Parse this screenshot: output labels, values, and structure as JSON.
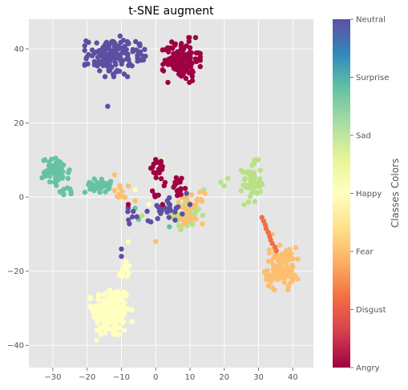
{
  "chart_data": {
    "type": "scatter",
    "title": "t-SNE augment",
    "xlabel": "",
    "ylabel": "",
    "xlim": [
      -37,
      46
    ],
    "ylim": [
      -46,
      48
    ],
    "x_ticks": [
      -30,
      -20,
      -10,
      0,
      10,
      20,
      30,
      40
    ],
    "y_ticks": [
      -40,
      -20,
      0,
      20,
      40
    ],
    "x_tick_labels": [
      "−30",
      "−20",
      "−10",
      "0",
      "10",
      "20",
      "30",
      "40"
    ],
    "y_tick_labels": [
      "−40",
      "−20",
      "0",
      "20",
      "40"
    ],
    "grid": true,
    "background": "#e5e5e5",
    "colormap": "Spectral",
    "colorbar": {
      "label": "Classes Colors",
      "ticks": [
        "Angry",
        "Disgust",
        "Fear",
        "Happy",
        "Sad",
        "Surprise",
        "Neutral"
      ],
      "colors": [
        "#9e0142",
        "#f46d43",
        "#fdbf6f",
        "#ffffbf",
        "#b8e186",
        "#66c2a5",
        "#5e4fa2"
      ]
    },
    "series": [
      {
        "name": "Neutral",
        "color": "#5e4fa2",
        "clusters": [
          {
            "cx": -13,
            "cy": 38,
            "rx": 7,
            "ry": 5,
            "n": 140
          },
          {
            "cx": -4,
            "cy": 39,
            "rx": 2.5,
            "ry": 2.5,
            "n": 12
          },
          {
            "cx": 3,
            "cy": -3,
            "rx": 5,
            "ry": 3.5,
            "n": 30
          },
          {
            "cx": -7,
            "cy": -5,
            "rx": 2,
            "ry": 2,
            "n": 8
          }
        ],
        "points": [
          [
            -14,
            24.5
          ],
          [
            -10,
            -14
          ],
          [
            -10,
            -16
          ],
          [
            9,
            1
          ],
          [
            10,
            -2
          ]
        ]
      },
      {
        "name": "Angry",
        "color": "#9e0142",
        "clusters": [
          {
            "cx": 7.5,
            "cy": 37,
            "rx": 5,
            "ry": 5.5,
            "n": 130
          },
          {
            "cx": 1,
            "cy": 8,
            "rx": 2.5,
            "ry": 2.5,
            "n": 18
          },
          {
            "cx": 6,
            "cy": 3,
            "rx": 4,
            "ry": 3,
            "n": 18
          },
          {
            "cx": 0,
            "cy": 1,
            "rx": 1.5,
            "ry": 1.5,
            "n": 6
          }
        ],
        "points": [
          [
            2,
            -2
          ],
          [
            -8,
            -2
          ]
        ]
      },
      {
        "name": "Surprise",
        "color": "#66c2a5",
        "clusters": [
          {
            "cx": -29,
            "cy": 7,
            "rx": 4,
            "ry": 3.5,
            "n": 70
          },
          {
            "cx": -17,
            "cy": 3,
            "rx": 3.5,
            "ry": 1.8,
            "n": 35
          },
          {
            "cx": -26,
            "cy": 1.5,
            "rx": 2.5,
            "ry": 1,
            "n": 10
          }
        ],
        "points": [
          [
            -6,
            -3
          ],
          [
            -5,
            -6
          ],
          [
            4,
            -8
          ]
        ]
      },
      {
        "name": "Fear",
        "color": "#fdbf6f",
        "clusters": [
          {
            "cx": 36.5,
            "cy": -19,
            "rx": 4.5,
            "ry": 5.5,
            "n": 110
          },
          {
            "cx": 10,
            "cy": -3,
            "rx": 4,
            "ry": 4,
            "n": 35
          },
          {
            "cx": -10,
            "cy": 1,
            "rx": 2.5,
            "ry": 2,
            "n": 10
          }
        ],
        "points": [
          [
            -12,
            6
          ],
          [
            -8,
            3
          ],
          [
            0,
            -12
          ],
          [
            -6,
            -1
          ],
          [
            34,
            -10
          ],
          [
            33,
            -22
          ]
        ]
      },
      {
        "name": "Sad",
        "color": "#b8e186",
        "clusters": [
          {
            "cx": 28,
            "cy": 4,
            "rx": 2.8,
            "ry": 5.5,
            "n": 55
          },
          {
            "cx": 9,
            "cy": -5,
            "rx": 4.5,
            "ry": 3.5,
            "n": 45
          }
        ],
        "points": [
          [
            19,
            4
          ],
          [
            20,
            3
          ],
          [
            21,
            5
          ],
          [
            6,
            2
          ],
          [
            14,
            2
          ],
          [
            -4,
            -5
          ]
        ]
      },
      {
        "name": "Happy",
        "color": "#ffffbf",
        "clusters": [
          {
            "cx": -13,
            "cy": -31,
            "rx": 5.5,
            "ry": 7,
            "n": 200
          },
          {
            "cx": -9,
            "cy": -20,
            "rx": 1.8,
            "ry": 3.5,
            "n": 15
          }
        ],
        "points": [
          [
            -2,
            -2
          ],
          [
            -6,
            2
          ],
          [
            4,
            -4
          ],
          [
            14,
            1
          ],
          [
            2,
            10
          ],
          [
            -8,
            -12
          ],
          [
            -10,
            -14
          ]
        ]
      },
      {
        "name": "Disgust",
        "color": "#f46d43",
        "clusters": [],
        "points": [
          [
            31,
            -5.5
          ],
          [
            31.5,
            -6.5
          ],
          [
            32,
            -7.5
          ],
          [
            32.2,
            -8.5
          ],
          [
            32.8,
            -9.5
          ],
          [
            33.2,
            -10.5
          ],
          [
            33.5,
            -11.5
          ],
          [
            34,
            -12.5
          ],
          [
            34.8,
            -13.5
          ],
          [
            35.2,
            -14.5
          ]
        ]
      }
    ]
  }
}
